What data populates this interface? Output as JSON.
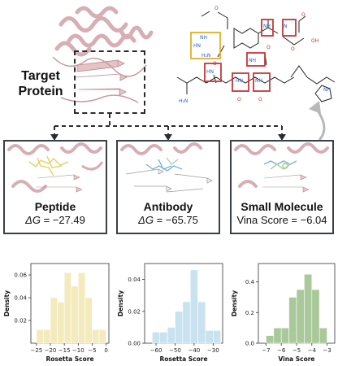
{
  "target_label": "Target\nProtein",
  "target_line1": "Target",
  "target_line2": "Protein",
  "panels": [
    {
      "label": "Peptide",
      "score_prefix": "ΔG = ",
      "score": "−27.49"
    },
    {
      "label": "Antibody",
      "score_prefix": "ΔG = ",
      "score": "−65.75"
    },
    {
      "label": "Small Molecule",
      "score_prefix": "Vina Score = ",
      "score": "−6.04"
    }
  ],
  "molecule_atoms": [
    "O",
    "NH",
    "HN",
    "H₂N",
    "NH",
    "N",
    "O",
    "OH",
    "O",
    "NH",
    "O",
    "H₂N",
    "HN",
    "O",
    "O",
    "HN",
    "O",
    "NH",
    "NH"
  ],
  "colors": {
    "peptide_hist": "#f3ebbd",
    "antibody_hist": "#c9e2ef",
    "small_molecule_hist": "#a9c99a",
    "protein": "#e5c2c6",
    "box_red": "#c8353a",
    "box_yellow": "#e4ae2c",
    "arrow_gray": "#b8b8b8"
  },
  "chart_data": [
    {
      "type": "bar",
      "xlabel": "Rosetta Score",
      "ylabel": "Density",
      "xlim": [
        -27,
        1
      ],
      "ylim": [
        0,
        0.07
      ],
      "xticks": [
        -25,
        -20,
        -15,
        -10,
        -5,
        0
      ],
      "yticks": [
        0.02,
        0.04,
        0.06
      ],
      "bin_edges": [
        -25,
        -22.5,
        -20,
        -17.5,
        -15,
        -12.5,
        -10,
        -7.5,
        -5,
        -2.5,
        0
      ],
      "values": [
        0.012,
        0.012,
        0.04,
        0.036,
        0.062,
        0.05,
        0.062,
        0.04,
        0.012,
        0.012
      ]
    },
    {
      "type": "bar",
      "xlabel": "Rosetta Score",
      "ylabel": "Density",
      "xlim": [
        -66,
        -25
      ],
      "ylim": [
        0,
        0.05
      ],
      "xticks": [
        -60,
        -50,
        -40,
        -30
      ],
      "yticks": [
        0.0,
        0.02,
        0.04
      ],
      "bin_edges": [
        -62,
        -58,
        -54,
        -50,
        -46,
        -42,
        -38,
        -34,
        -30,
        -26
      ],
      "values": [
        0.007,
        0.007,
        0.01,
        0.02,
        0.026,
        0.046,
        0.026,
        0.008,
        0.008
      ]
    },
    {
      "type": "bar",
      "xlabel": "Vina Score",
      "ylabel": "Density",
      "xlim": [
        -7.5,
        -2.5
      ],
      "ylim": [
        0,
        0.52
      ],
      "xticks": [
        -7,
        -6,
        -5,
        -4,
        -3
      ],
      "yticks": [
        0.0,
        0.2,
        0.4
      ],
      "bin_edges": [
        -7,
        -6.5,
        -6,
        -5.5,
        -5,
        -4.5,
        -4,
        -3.5,
        -3
      ],
      "values": [
        0.05,
        0.1,
        0.1,
        0.3,
        0.35,
        0.45,
        0.35,
        0.1
      ]
    }
  ]
}
